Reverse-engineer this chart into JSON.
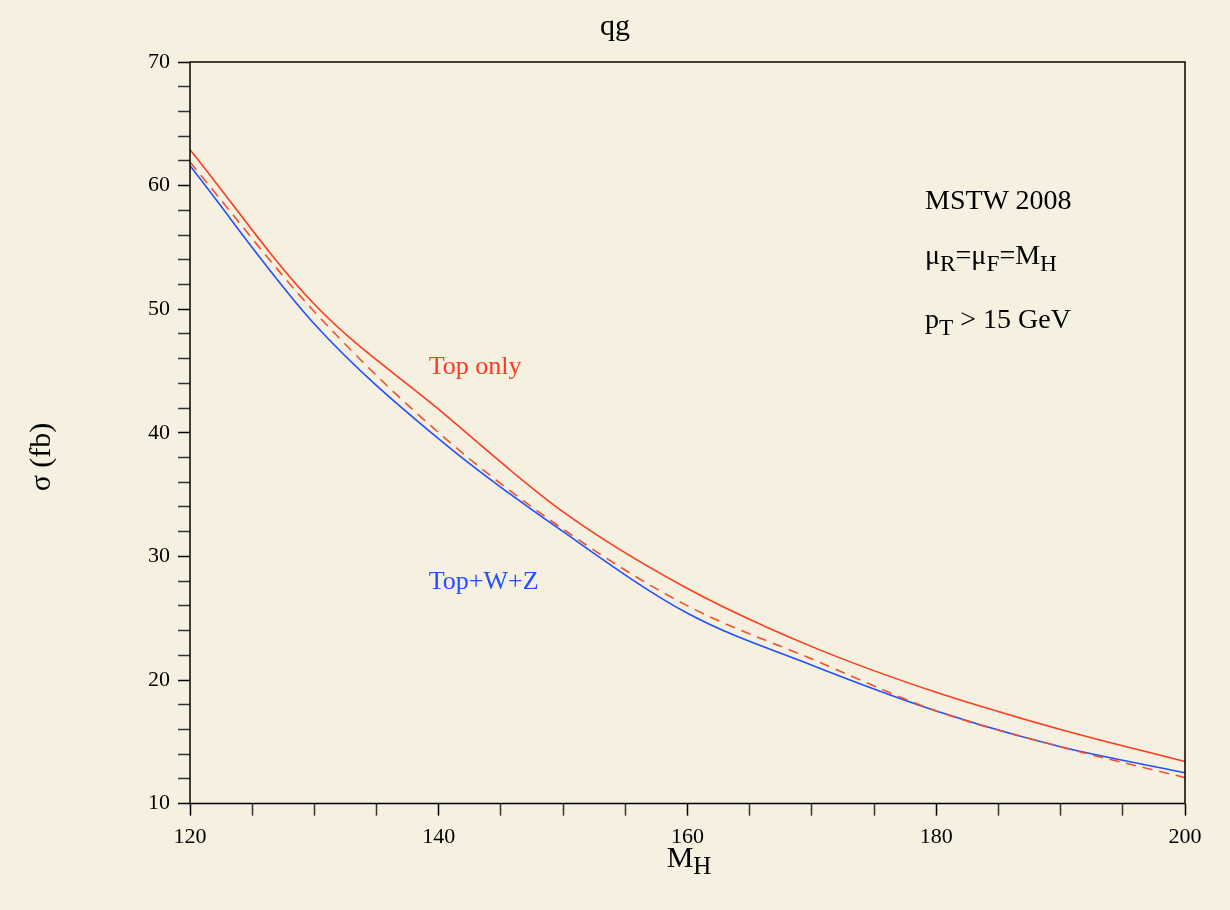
{
  "chart_data": {
    "type": "line",
    "title": "qg",
    "xlabel": "M$_{H}$",
    "ylabel": "σ (fb)",
    "x": [
      120,
      130,
      140,
      150,
      160,
      170,
      180,
      190,
      200
    ],
    "series": [
      {
        "name": "Top only",
        "color": "#ff3b1f",
        "line_style": "solid",
        "values": [
          62.9,
          50.4,
          41.9,
          33.6,
          27.4,
          22.7,
          19.0,
          16.0,
          13.4
        ]
      },
      {
        "color": "#f05030",
        "line_style": "dashed",
        "values": [
          61.9,
          49.8,
          40.0,
          32.2,
          26.0,
          21.7,
          17.5,
          14.6,
          12.1
        ]
      },
      {
        "name": "Top+W+Z",
        "color": "#2050ff",
        "line_style": "solid",
        "values": [
          61.6,
          48.8,
          39.5,
          32.0,
          25.4,
          21.2,
          17.5,
          14.6,
          12.5
        ]
      }
    ],
    "xlim": [
      120,
      200
    ],
    "xticks": [
      120,
      {
        "value": 125,
        "label": null
      },
      {
        "value": 130,
        "label": null
      },
      {
        "value": 135,
        "label": null
      },
      140,
      {
        "value": 145,
        "label": null
      },
      {
        "value": 150,
        "label": null
      },
      {
        "value": 155,
        "label": null
      },
      160,
      {
        "value": 165,
        "label": null
      },
      {
        "value": 170,
        "label": null
      },
      {
        "value": 175,
        "label": null
      },
      180,
      {
        "value": 185,
        "label": null
      },
      {
        "value": 190,
        "label": null
      },
      {
        "value": 195,
        "label": null
      },
      200
    ],
    "ylim": [
      10,
      70
    ],
    "yticks": [
      10,
      {
        "value": 12,
        "label": null
      },
      {
        "value": 14,
        "label": null
      },
      {
        "value": 16,
        "label": null
      },
      {
        "value": 18,
        "label": null
      },
      20,
      {
        "value": 22,
        "label": null
      },
      {
        "value": 24,
        "label": null
      },
      {
        "value": 26,
        "label": null
      },
      {
        "value": 28,
        "label": null
      },
      30,
      {
        "value": 32,
        "label": null
      },
      {
        "value": 34,
        "label": null
      },
      {
        "value": 36,
        "label": null
      },
      {
        "value": 38,
        "label": null
      },
      40,
      {
        "value": 42,
        "label": null
      },
      {
        "value": 44,
        "label": null
      },
      {
        "value": 46,
        "label": null
      },
      {
        "value": 48,
        "label": null
      },
      50,
      {
        "value": 52,
        "label": null
      },
      {
        "value": 54,
        "label": null
      },
      {
        "value": 56,
        "label": null
      },
      {
        "value": 58,
        "label": null
      },
      60,
      {
        "value": 62,
        "label": null
      },
      {
        "value": 64,
        "label": null
      },
      {
        "value": 66,
        "label": null
      },
      {
        "value": 68,
        "label": null
      },
      70
    ],
    "grid": false,
    "legend": false,
    "marker": "none",
    "annotations": [
      "MSTW 2008",
      "μ$_{R}$=μ$_{F}$=M$_{H}$",
      "p$_{T}$ > 15 GeV"
    ]
  }
}
